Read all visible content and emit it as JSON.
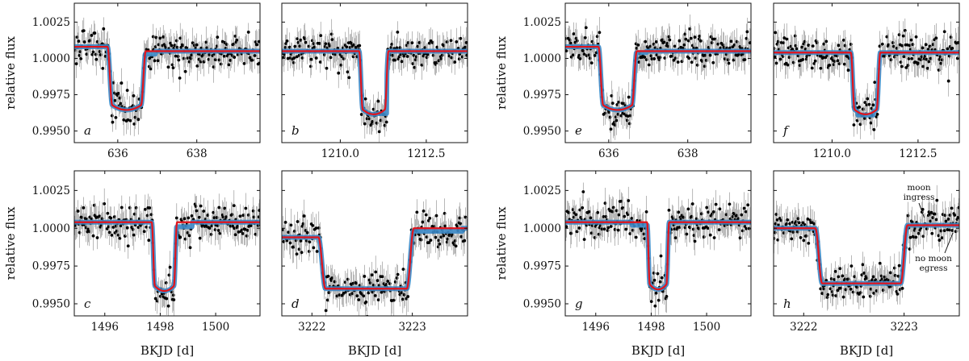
{
  "chart_data": [
    {
      "panel": "a",
      "type": "scatter",
      "xlim": [
        634.9,
        639.6
      ],
      "ylim": [
        0.9942,
        1.0038
      ],
      "xticks": [
        "636",
        "638"
      ],
      "xtick_values": [
        636,
        638
      ],
      "yticks": [
        "1.0025",
        "1.0000",
        "0.9975",
        "0.9950"
      ],
      "ytick_values": [
        1.0025,
        1.0,
        0.9975,
        0.995
      ],
      "xlabel": "",
      "ylabel": "relative flux",
      "transit": {
        "ingress": 635.8,
        "egress": 636.65,
        "depth_center": 0.99645,
        "baseline_left": 1.0008,
        "baseline_right": 1.0005,
        "duration_shape": "u"
      },
      "moon_dip": {
        "start": 636.65,
        "end": 636.95,
        "level": 1.0003
      }
    },
    {
      "panel": "b",
      "type": "scatter",
      "xlim": [
        1208.3,
        1213.7
      ],
      "ylim": [
        0.9942,
        1.0038
      ],
      "xticks": [
        "1210.0",
        "1212.5"
      ],
      "xtick_values": [
        1210.0,
        1212.5
      ],
      "yticks": [
        "1.0025",
        "1.0000",
        "0.9975",
        "0.9950"
      ],
      "ytick_values": [
        1.0025,
        1.0,
        0.9975,
        0.995
      ],
      "xlabel": "",
      "ylabel": "",
      "transit": {
        "ingress": 1210.6,
        "egress": 1211.35,
        "depth_center": 0.99615,
        "baseline_left": 1.0005,
        "baseline_right": 1.0005,
        "duration_shape": "u"
      },
      "moon_dip": {
        "start": 1210.95,
        "end": 1211.35,
        "level": 0.9962
      }
    },
    {
      "panel": "c",
      "type": "scatter",
      "xlim": [
        1494.9,
        1501.6
      ],
      "ylim": [
        0.9942,
        1.0038
      ],
      "xticks": [
        "1496",
        "1498",
        "1500"
      ],
      "xtick_values": [
        1496,
        1498,
        1500
      ],
      "yticks": [
        "1.0025",
        "1.0000",
        "0.9975",
        "0.9950"
      ],
      "ytick_values": [
        1.0025,
        1.0,
        0.9975,
        0.995
      ],
      "xlabel": "BKJD [d]",
      "ylabel": "relative flux",
      "transit": {
        "ingress": 1497.75,
        "egress": 1498.55,
        "depth_center": 0.99585,
        "baseline_left": 1.0004,
        "baseline_right": 1.0004,
        "duration_shape": "u"
      },
      "moon_dip": {
        "start": 1498.55,
        "end": 1499.15,
        "level": 1.0001
      }
    },
    {
      "panel": "d",
      "type": "scatter",
      "xlim": [
        3221.7,
        3223.55
      ],
      "ylim": [
        0.9942,
        1.0038
      ],
      "xticks": [
        "3222",
        "3223"
      ],
      "xtick_values": [
        3222,
        3223
      ],
      "yticks": [
        "1.0025",
        "1.0000",
        "0.9975",
        "0.9950"
      ],
      "ytick_values": [
        1.0025,
        1.0,
        0.9975,
        0.995
      ],
      "xlabel": "BKJD [d]",
      "ylabel": "",
      "transit": {
        "ingress": 3222.1,
        "egress": 3222.98,
        "depth_center": 0.996,
        "baseline_left": 0.9994,
        "baseline_right": 1.0,
        "duration_shape": "flat"
      },
      "moon_dip": {
        "start": 3223.0,
        "end": 3223.5,
        "level": 0.9998
      }
    },
    {
      "panel": "e",
      "type": "scatter",
      "xlim": [
        634.9,
        639.6
      ],
      "ylim": [
        0.9942,
        1.0038
      ],
      "xticks": [
        "636",
        "638"
      ],
      "xtick_values": [
        636,
        638
      ],
      "yticks": [
        "1.0025",
        "1.0000",
        "0.9975",
        "0.9950"
      ],
      "ytick_values": [
        1.0025,
        1.0,
        0.9975,
        0.995
      ],
      "xlabel": "",
      "ylabel": "relative flux",
      "transit": {
        "ingress": 635.8,
        "egress": 636.65,
        "depth_center": 0.99645,
        "baseline_left": 1.0008,
        "baseline_right": 1.0005,
        "duration_shape": "u"
      },
      "moon_dip": {
        "start": 636.65,
        "end": 636.95,
        "level": 1.0004
      }
    },
    {
      "panel": "f",
      "type": "scatter",
      "xlim": [
        1208.3,
        1213.7
      ],
      "ylim": [
        0.9942,
        1.0038
      ],
      "xticks": [
        "1210.0",
        "1212.5"
      ],
      "xtick_values": [
        1210.0,
        1212.5
      ],
      "yticks": [
        "1.0025",
        "1.0000",
        "0.9975",
        "0.9950"
      ],
      "ytick_values": [
        1.0025,
        1.0,
        0.9975,
        0.995
      ],
      "xlabel": "",
      "ylabel": "",
      "transit": {
        "ingress": 1210.6,
        "egress": 1211.35,
        "depth_center": 0.99615,
        "baseline_left": 1.0004,
        "baseline_right": 1.0004,
        "duration_shape": "u"
      },
      "moon_dip": {
        "start": 1210.75,
        "end": 1211.2,
        "level": 0.9961
      }
    },
    {
      "panel": "g",
      "type": "scatter",
      "xlim": [
        1494.9,
        1501.6
      ],
      "ylim": [
        0.9942,
        1.0038
      ],
      "xticks": [
        "1496",
        "1498",
        "1500"
      ],
      "xtick_values": [
        1496,
        1498,
        1500
      ],
      "yticks": [
        "1.0025",
        "1.0000",
        "0.9975",
        "0.9950"
      ],
      "ytick_values": [
        1.0025,
        1.0,
        0.9975,
        0.995
      ],
      "xlabel": "BKJD [d]",
      "ylabel": "relative flux",
      "transit": {
        "ingress": 1497.9,
        "egress": 1498.6,
        "depth_center": 0.99595,
        "baseline_left": 1.0004,
        "baseline_right": 1.0004,
        "duration_shape": "u"
      },
      "moon_dip": {
        "start": 1497.3,
        "end": 1497.9,
        "level": 1.0002
      }
    },
    {
      "panel": "h",
      "type": "scatter",
      "xlim": [
        3221.7,
        3223.55
      ],
      "ylim": [
        0.9942,
        1.0038
      ],
      "xticks": [
        "3222",
        "3223"
      ],
      "xtick_values": [
        3222,
        3223
      ],
      "yticks": [
        "1.0025",
        "1.0000",
        "0.9975",
        "0.9950"
      ],
      "ytick_values": [
        1.0025,
        1.0,
        0.9975,
        0.995
      ],
      "xlabel": "BKJD [d]",
      "ylabel": "",
      "transit": {
        "ingress": 3222.15,
        "egress": 3223.0,
        "depth_center": 0.99635,
        "baseline_left": 1.0,
        "baseline_right": 1.0002,
        "duration_shape": "flat"
      },
      "moon_dip": {
        "start": 3223.0,
        "end": 3223.5,
        "level": 1.0002
      },
      "annotations": [
        {
          "lines": [
            "moon",
            "ingress"
          ],
          "target": [
            3223.2,
            1.0005
          ]
        },
        {
          "lines": [
            "no moon",
            "egress"
          ],
          "target": [
            3223.5,
            1.0
          ]
        }
      ]
    }
  ]
}
